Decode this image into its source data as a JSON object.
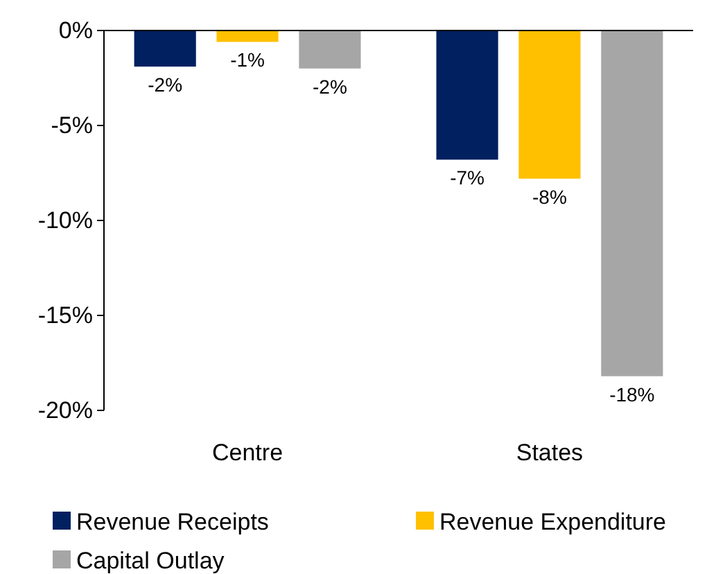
{
  "chart_data": {
    "type": "bar",
    "categories": [
      "Centre",
      "States"
    ],
    "series": [
      {
        "name": "Revenue Receipts",
        "color": "#002060",
        "values": [
          -1.9,
          -6.8
        ],
        "value_labels": [
          "-2%",
          "-7%"
        ]
      },
      {
        "name": "Revenue Expenditure",
        "color": "#ffc000",
        "values": [
          -0.6,
          -7.8
        ],
        "value_labels": [
          "-1%",
          "-8%"
        ]
      },
      {
        "name": "Capital Outlay",
        "color": "#a6a6a6",
        "values": [
          -2.0,
          -18.2
        ],
        "value_labels": [
          "-2%",
          "-18%"
        ]
      }
    ],
    "ylim": [
      -20,
      0
    ],
    "yticks": [
      {
        "value": 0,
        "label": "0%"
      },
      {
        "value": -5,
        "label": "-5%"
      },
      {
        "value": -10,
        "label": "-10%"
      },
      {
        "value": -15,
        "label": "-15%"
      },
      {
        "value": -20,
        "label": "-20%"
      }
    ],
    "grid": false,
    "legend": "bottom"
  }
}
